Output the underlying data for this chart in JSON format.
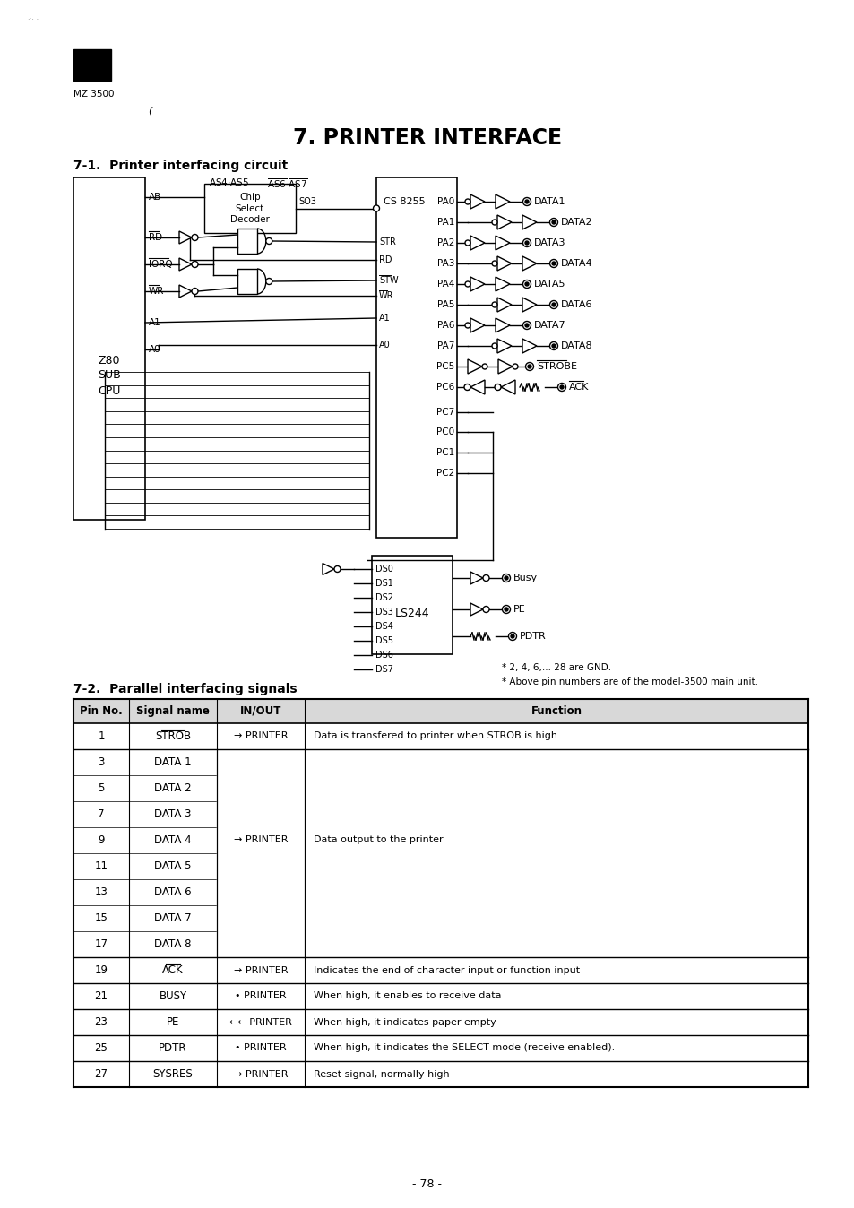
{
  "title": "7. PRINTER INTERFACE",
  "section1": "7-1.  Printer interfacing circuit",
  "section2": "7-2.  Parallel interfacing signals",
  "page_num": "- 78 -",
  "header_text": "MZ 3500",
  "bg_color": "#ffffff",
  "table_headers": [
    "Pin No.",
    "Signal name",
    "IN/OUT",
    "Function"
  ],
  "table_rows": [
    [
      "1",
      "STROB",
      "→ PRINTER",
      "Data is transfered to printer when STROB is high."
    ],
    [
      "3",
      "DATA 1",
      "",
      ""
    ],
    [
      "5",
      "DATA 2",
      "",
      ""
    ],
    [
      "7",
      "DATA 3",
      "",
      ""
    ],
    [
      "9",
      "DATA 4",
      "→ PRINTER",
      "Data output to the printer"
    ],
    [
      "11",
      "DATA 5",
      "",
      ""
    ],
    [
      "13",
      "DATA 6",
      "",
      ""
    ],
    [
      "15",
      "DATA 7",
      "",
      ""
    ],
    [
      "17",
      "DATA 8",
      "",
      ""
    ],
    [
      "19",
      "ACK",
      "→ PRINTER",
      "Indicates the end of character input or function input"
    ],
    [
      "21",
      "BUSY",
      "• PRINTER",
      "When high, it enables to receive data"
    ],
    [
      "23",
      "PE",
      "←← PRINTER",
      "When high, it indicates paper empty"
    ],
    [
      "25",
      "PDTR",
      "• PRINTER",
      "When high, it indicates the SELECT mode (receive enabled)."
    ],
    [
      "27",
      "SYSRES",
      "→ PRINTER",
      "Reset signal, normally high"
    ]
  ],
  "note1": "* 2, 4, 6,... 28 are GND.",
  "note2": "* Above pin numbers are of the model-3500 main unit.",
  "z80_signals_left": [
    "AB",
    "RD",
    "IORQ",
    "WR",
    "A1",
    "A0"
  ],
  "z80_overbars": [
    "RD",
    "WR",
    "IORQ"
  ],
  "cs_left_pins": [
    "STR",
    "RD",
    "STW",
    "WR",
    "A1",
    "A0"
  ],
  "cs_left_overbars": [
    "STR",
    "RD",
    "STW",
    "WR"
  ],
  "cs_right_pins": [
    "PA0",
    "PA1",
    "PA2",
    "PA3",
    "PA4",
    "PA5",
    "PA6",
    "PA7",
    "PC5",
    "PC6",
    "PC7",
    "PC0",
    "PC1",
    "PC2"
  ],
  "data_out_labels": [
    "DATA1",
    "DATA2",
    "DATA3",
    "DATA4",
    "DATA5",
    "DATA6",
    "DATA7",
    "DATA8",
    "STROBE",
    "ACK"
  ],
  "ls244_pins": [
    "DS0",
    "DS1",
    "DS2",
    "DS3",
    "DS4",
    "DS5",
    "DS6",
    "DS7"
  ],
  "output_signals": [
    "Busy",
    "PE",
    "PDTR"
  ]
}
